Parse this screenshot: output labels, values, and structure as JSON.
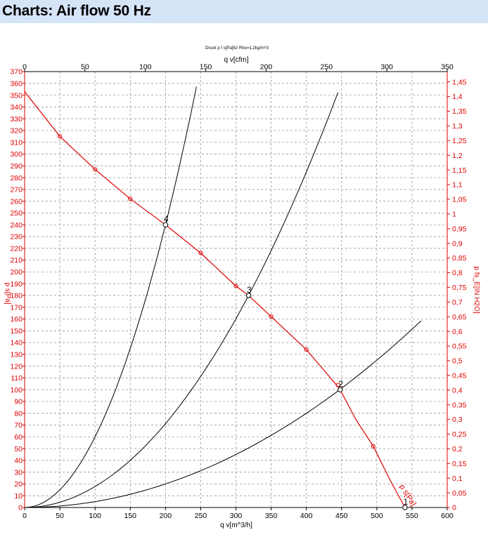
{
  "header": {
    "title": "Charts: Air flow 50 Hz"
  },
  "chart_data": {
    "type": "line",
    "title": "Druck p f s[Pa]für Rho=1,2kg/m^3",
    "xlabel_bottom": "q v[m^3/h]",
    "xlabel_top": "q v[cfm]",
    "ylabel_left": "p s[Pa]",
    "ylabel_right": "p fs_E[IN H2O]",
    "xlim_bottom": [
      0,
      600
    ],
    "xlim_top": [
      0,
      350
    ],
    "ylim_left": [
      0,
      370
    ],
    "ylim_right": [
      0,
      1.485
    ],
    "grid": true,
    "colors": {
      "fan_curve": "#e00000",
      "system_curve": "#000000",
      "axis_right": "#e00000",
      "axis_left": "#e00000"
    },
    "x_ticks_bottom": [
      "0",
      "50",
      "100",
      "150",
      "200",
      "250",
      "300",
      "350",
      "400",
      "450",
      "500",
      "550",
      "600"
    ],
    "x_ticks_top": [
      "0",
      "50",
      "100",
      "150",
      "200",
      "250",
      "300",
      "350"
    ],
    "y_ticks_left": [
      "0",
      "10",
      "20",
      "30",
      "40",
      "50",
      "60",
      "70",
      "80",
      "90",
      "100",
      "110",
      "120",
      "130",
      "140",
      "150",
      "160",
      "170",
      "180",
      "190",
      "200",
      "210",
      "220",
      "230",
      "240",
      "250",
      "260",
      "270",
      "280",
      "290",
      "300",
      "310",
      "320",
      "330",
      "340",
      "350",
      "360",
      "370"
    ],
    "y_ticks_right": [
      "0",
      "0,05",
      "0,1",
      "0,15",
      "0,2",
      "0,25",
      "0,3",
      "0,35",
      "0,4",
      "0,45",
      "0,5",
      "0,55",
      "0,6",
      "0,65",
      "0,7",
      "0,75",
      "0,8",
      "0,85",
      "0,9",
      "0,95",
      "1",
      "1,05",
      "1,1",
      "1,15",
      "1,2",
      "1,25",
      "1,3",
      "1,35",
      "1,4",
      "1,45"
    ],
    "fan_curve": {
      "name": "p s[Pa]",
      "x": [
        0,
        50,
        100,
        150,
        200,
        250,
        300,
        318,
        350,
        400,
        440,
        448,
        470,
        495,
        520,
        540
      ],
      "y": [
        353,
        315,
        287,
        262,
        240,
        216,
        188,
        180,
        162,
        134,
        106,
        100,
        75,
        52,
        22,
        0
      ]
    },
    "fan_markers": {
      "x": [
        50,
        100,
        150,
        250,
        300,
        350,
        400,
        445,
        495
      ],
      "y": [
        315,
        287,
        262,
        216,
        188,
        162,
        134,
        104,
        52
      ]
    },
    "system_curves": [
      {
        "k": 0.006,
        "x_max": 244
      },
      {
        "k": 0.00178,
        "x_max": 445
      },
      {
        "k": 0.0005,
        "x_max": 563
      }
    ],
    "operating_points": [
      {
        "label": "4",
        "x": 200,
        "y": 240
      },
      {
        "label": "3",
        "x": 318,
        "y": 180
      },
      {
        "label": "2",
        "x": 448,
        "y": 100
      },
      {
        "label": "1",
        "x": 540,
        "y": 0
      }
    ]
  }
}
